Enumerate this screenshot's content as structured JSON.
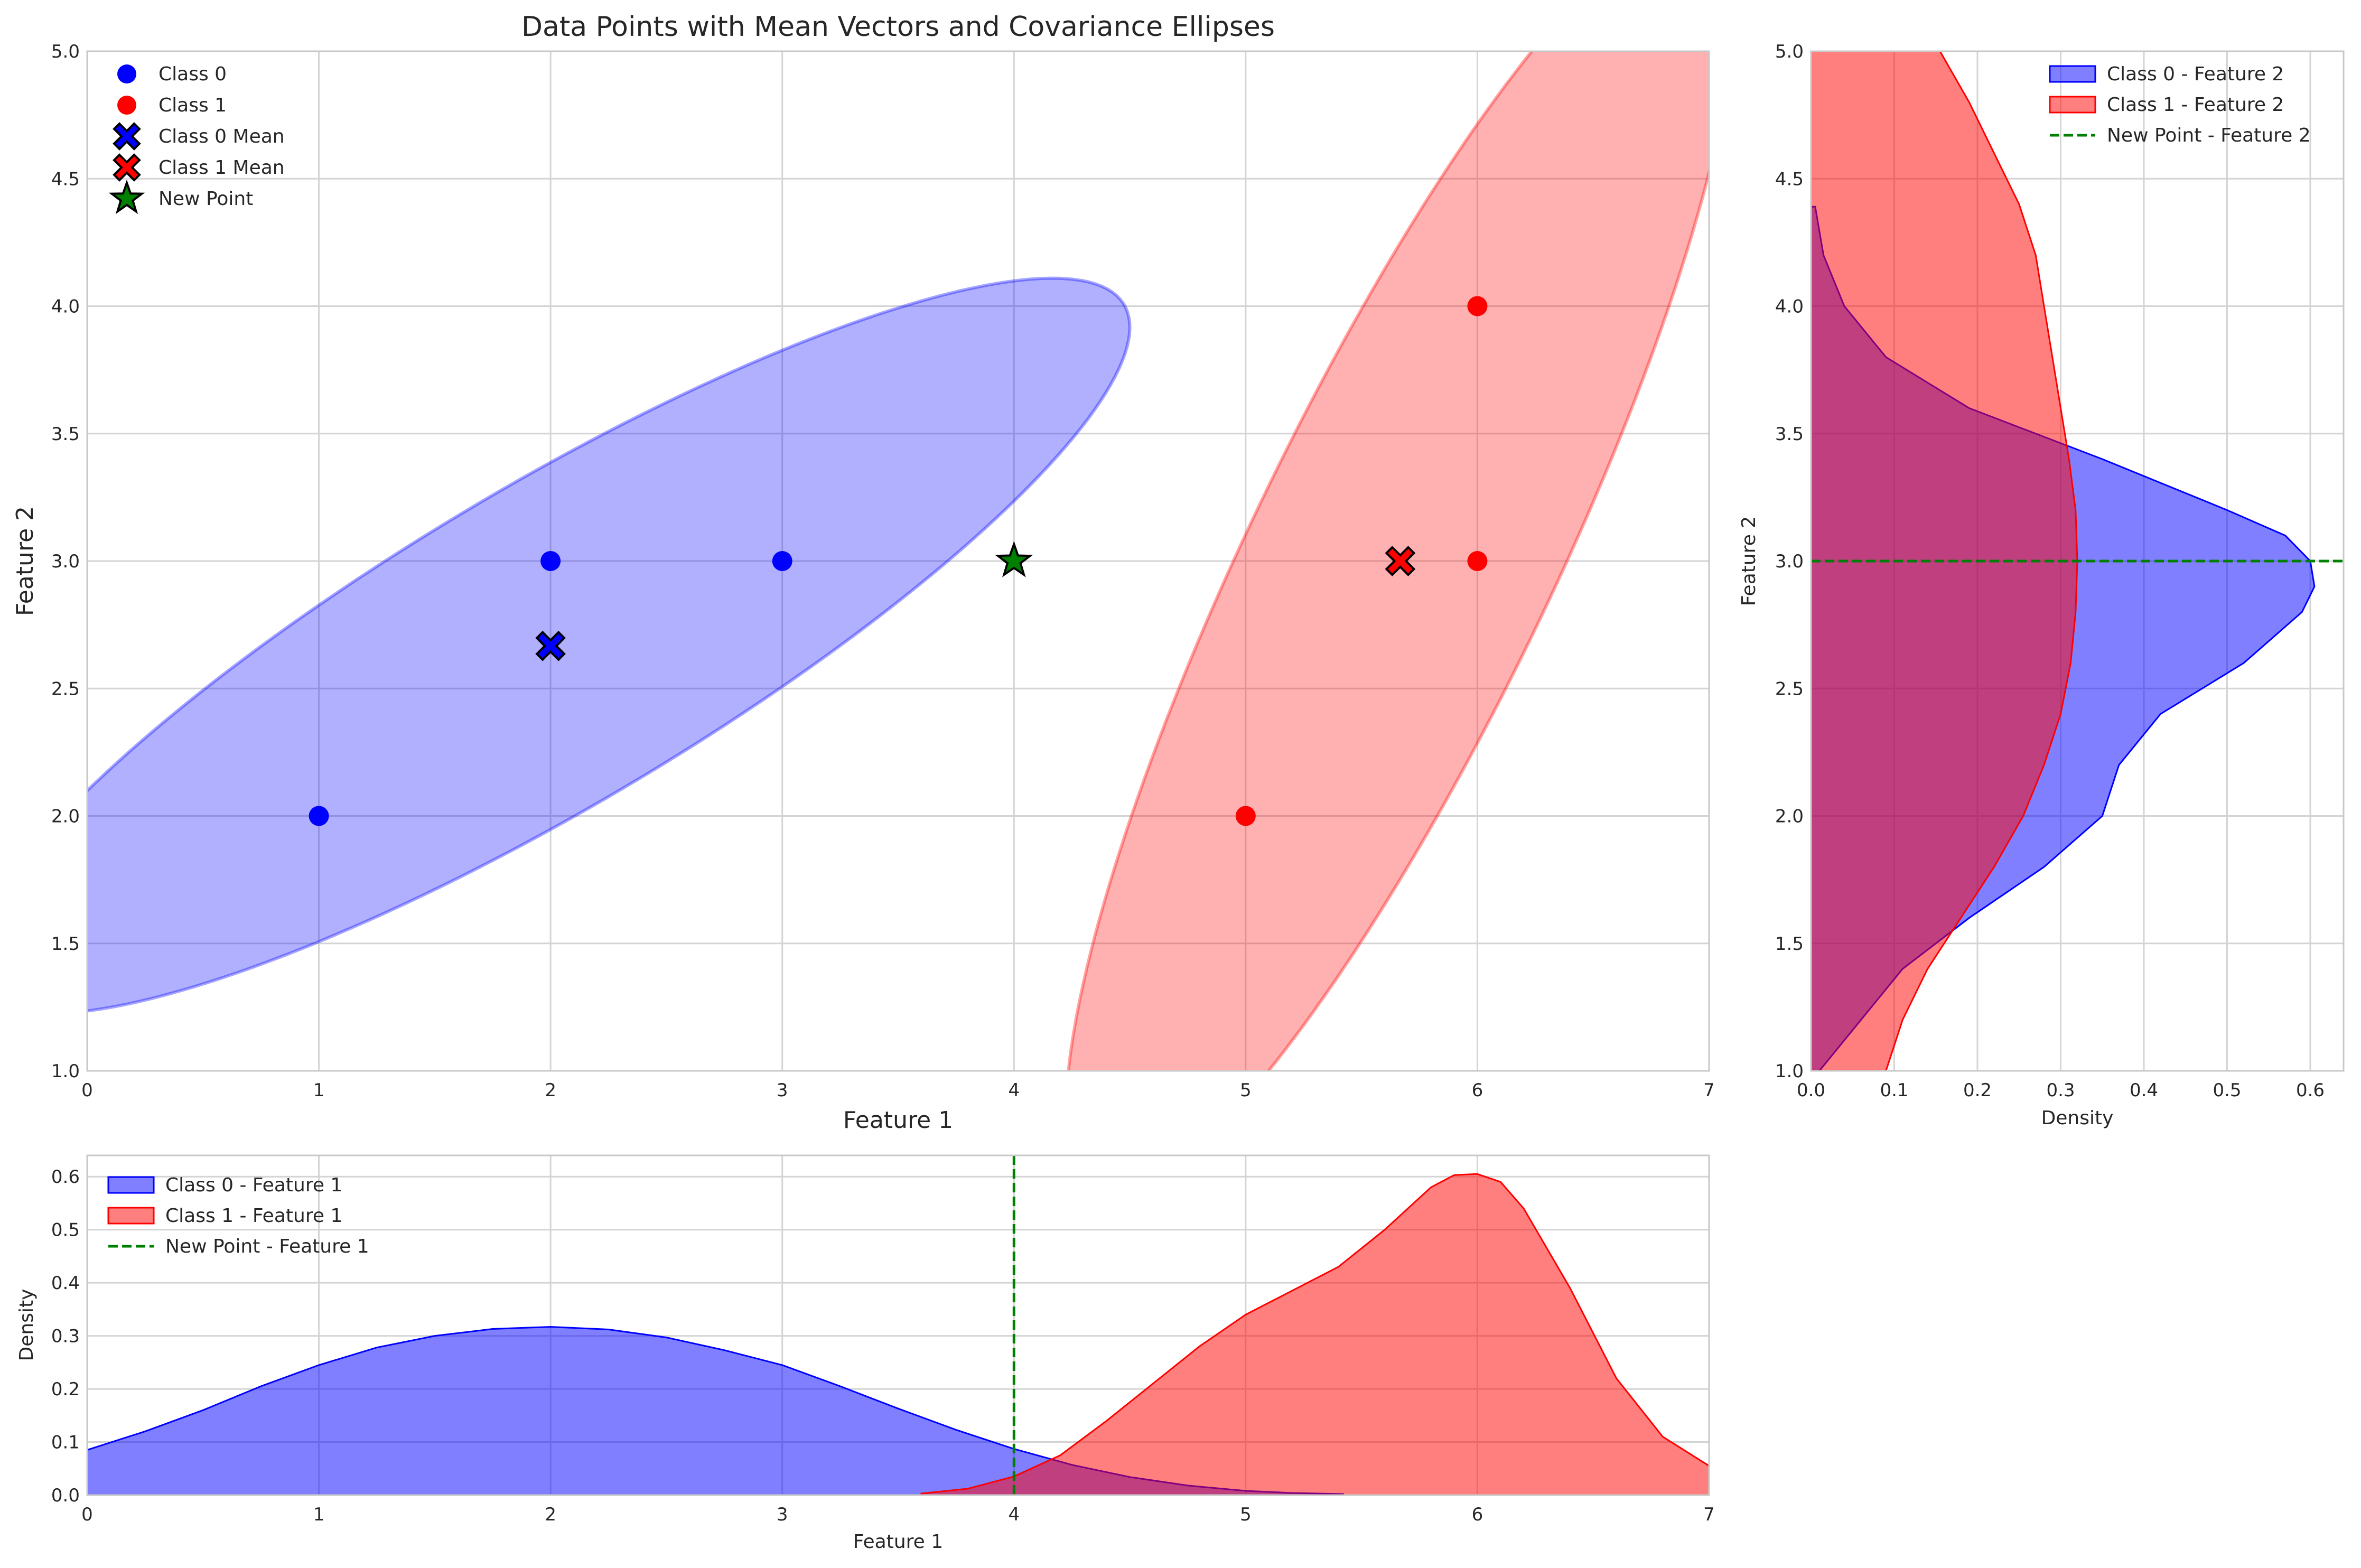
{
  "chart_data": [
    {
      "type": "scatter",
      "title": "Data Points with Mean Vectors and Covariance Ellipses",
      "xlabel": "Feature 1",
      "ylabel": "Feature 2",
      "xlim": [
        0,
        7
      ],
      "ylim": [
        1.0,
        5.0
      ],
      "xticks": [
        "0",
        "1",
        "2",
        "3",
        "4",
        "5",
        "6",
        "7"
      ],
      "yticks": [
        "1.0",
        "1.5",
        "2.0",
        "2.5",
        "3.0",
        "3.5",
        "4.0",
        "4.5",
        "5.0"
      ],
      "grid": true,
      "legend_position": "top-left",
      "legend": [
        "Class 0",
        "Class 1",
        "Class 0 Mean",
        "Class 1 Mean",
        "New Point"
      ],
      "series": [
        {
          "name": "Class 0",
          "color": "#0000ff",
          "points": [
            [
              1,
              2
            ],
            [
              2,
              3
            ],
            [
              3,
              3
            ]
          ]
        },
        {
          "name": "Class 1",
          "color": "#ff0000",
          "points": [
            [
              5,
              2
            ],
            [
              6,
              3
            ],
            [
              6,
              4
            ]
          ]
        },
        {
          "name": "Class 0 Mean",
          "color": "#0000ff",
          "marker": "x",
          "points": [
            [
              2.0,
              2.667
            ]
          ]
        },
        {
          "name": "Class 1 Mean",
          "color": "#ff0000",
          "marker": "x",
          "points": [
            [
              5.667,
              3.0
            ]
          ]
        },
        {
          "name": "New Point",
          "color": "#008000",
          "marker": "star",
          "points": [
            [
              4,
              3
            ]
          ]
        }
      ],
      "ellipses": [
        {
          "class": "Class 0",
          "color": "#0000ff",
          "center": [
            2.0,
            2.667
          ],
          "cov": [
            [
              1.0,
              0.5
            ],
            [
              0.5,
              0.333
            ]
          ],
          "n_std": 2.5
        },
        {
          "class": "Class 1",
          "color": "#ff0000",
          "center": [
            5.667,
            3.0
          ],
          "cov": [
            [
              0.333,
              0.5
            ],
            [
              0.5,
              1.0
            ]
          ],
          "n_std": 2.5
        }
      ]
    },
    {
      "type": "area",
      "orientation": "horizontal",
      "xlabel": "Density",
      "ylabel": "Feature 2",
      "xlim": [
        0,
        0.64
      ],
      "ylim": [
        1.0,
        5.0
      ],
      "xticks": [
        "0.0",
        "0.1",
        "0.2",
        "0.3",
        "0.4",
        "0.5",
        "0.6"
      ],
      "yticks": [
        "1.0",
        "1.5",
        "2.0",
        "2.5",
        "3.0",
        "3.5",
        "4.0",
        "4.5",
        "5.0"
      ],
      "grid": true,
      "legend_position": "top-right",
      "legend": [
        "Class 0 - Feature 2",
        "Class 1 - Feature 2",
        "New Point - Feature 2"
      ],
      "series": [
        {
          "name": "Class 0 - Feature 2",
          "color": "#0000ff",
          "y": [
            1.0,
            1.2,
            1.4,
            1.6,
            1.8,
            2.0,
            2.2,
            2.4,
            2.6,
            2.8,
            2.9,
            3.0,
            3.1,
            3.2,
            3.4,
            3.6,
            3.8,
            4.0,
            4.2,
            4.39
          ],
          "density": [
            0.01,
            0.06,
            0.11,
            0.19,
            0.28,
            0.35,
            0.37,
            0.42,
            0.52,
            0.59,
            0.605,
            0.6,
            0.57,
            0.5,
            0.35,
            0.19,
            0.09,
            0.04,
            0.015,
            0.005
          ]
        },
        {
          "name": "Class 1 - Feature 2",
          "color": "#ff0000",
          "y": [
            1.0,
            1.2,
            1.4,
            1.6,
            1.8,
            2.0,
            2.2,
            2.4,
            2.6,
            2.8,
            3.0,
            3.2,
            3.4,
            3.6,
            3.8,
            4.0,
            4.2,
            4.4,
            4.6,
            4.8,
            5.0
          ],
          "density": [
            0.09,
            0.11,
            0.14,
            0.18,
            0.22,
            0.255,
            0.28,
            0.3,
            0.312,
            0.318,
            0.32,
            0.318,
            0.31,
            0.3,
            0.29,
            0.28,
            0.27,
            0.25,
            0.22,
            0.19,
            0.155
          ]
        }
      ],
      "reference_line": {
        "name": "New Point - Feature 2",
        "color": "#008000",
        "y": 3.0
      }
    },
    {
      "type": "area",
      "xlabel": "Feature 1",
      "ylabel": "Density",
      "xlim": [
        0,
        7
      ],
      "ylim": [
        0,
        0.64
      ],
      "xticks": [
        "0",
        "1",
        "2",
        "3",
        "4",
        "5",
        "6",
        "7"
      ],
      "yticks": [
        "0.0",
        "0.1",
        "0.2",
        "0.3",
        "0.4",
        "0.5",
        "0.6"
      ],
      "grid": true,
      "legend_position": "top-left",
      "legend": [
        "Class 0 - Feature 1",
        "Class 1 - Feature 1",
        "New Point - Feature 1"
      ],
      "series": [
        {
          "name": "Class 0 - Feature 1",
          "color": "#0000ff",
          "x": [
            0,
            0.25,
            0.5,
            0.75,
            1.0,
            1.25,
            1.5,
            1.75,
            2.0,
            2.25,
            2.5,
            2.75,
            3.0,
            3.25,
            3.5,
            3.75,
            4.0,
            4.25,
            4.5,
            4.75,
            5.0,
            5.2,
            5.42
          ],
          "density": [
            0.085,
            0.12,
            0.16,
            0.205,
            0.245,
            0.278,
            0.3,
            0.313,
            0.317,
            0.312,
            0.297,
            0.273,
            0.245,
            0.205,
            0.163,
            0.123,
            0.087,
            0.057,
            0.034,
            0.018,
            0.008,
            0.004,
            0.002
          ]
        },
        {
          "name": "Class 1 - Feature 1",
          "color": "#ff0000",
          "x": [
            3.6,
            3.8,
            4.0,
            4.2,
            4.4,
            4.6,
            4.8,
            5.0,
            5.2,
            5.4,
            5.6,
            5.8,
            5.9,
            6.0,
            6.1,
            6.2,
            6.4,
            6.6,
            6.8,
            7.0
          ],
          "density": [
            0.003,
            0.012,
            0.035,
            0.075,
            0.14,
            0.21,
            0.28,
            0.34,
            0.385,
            0.43,
            0.5,
            0.58,
            0.603,
            0.605,
            0.59,
            0.54,
            0.39,
            0.22,
            0.11,
            0.055
          ]
        }
      ],
      "reference_line": {
        "name": "New Point - Feature 1",
        "color": "#008000",
        "x": 4.0
      }
    }
  ]
}
